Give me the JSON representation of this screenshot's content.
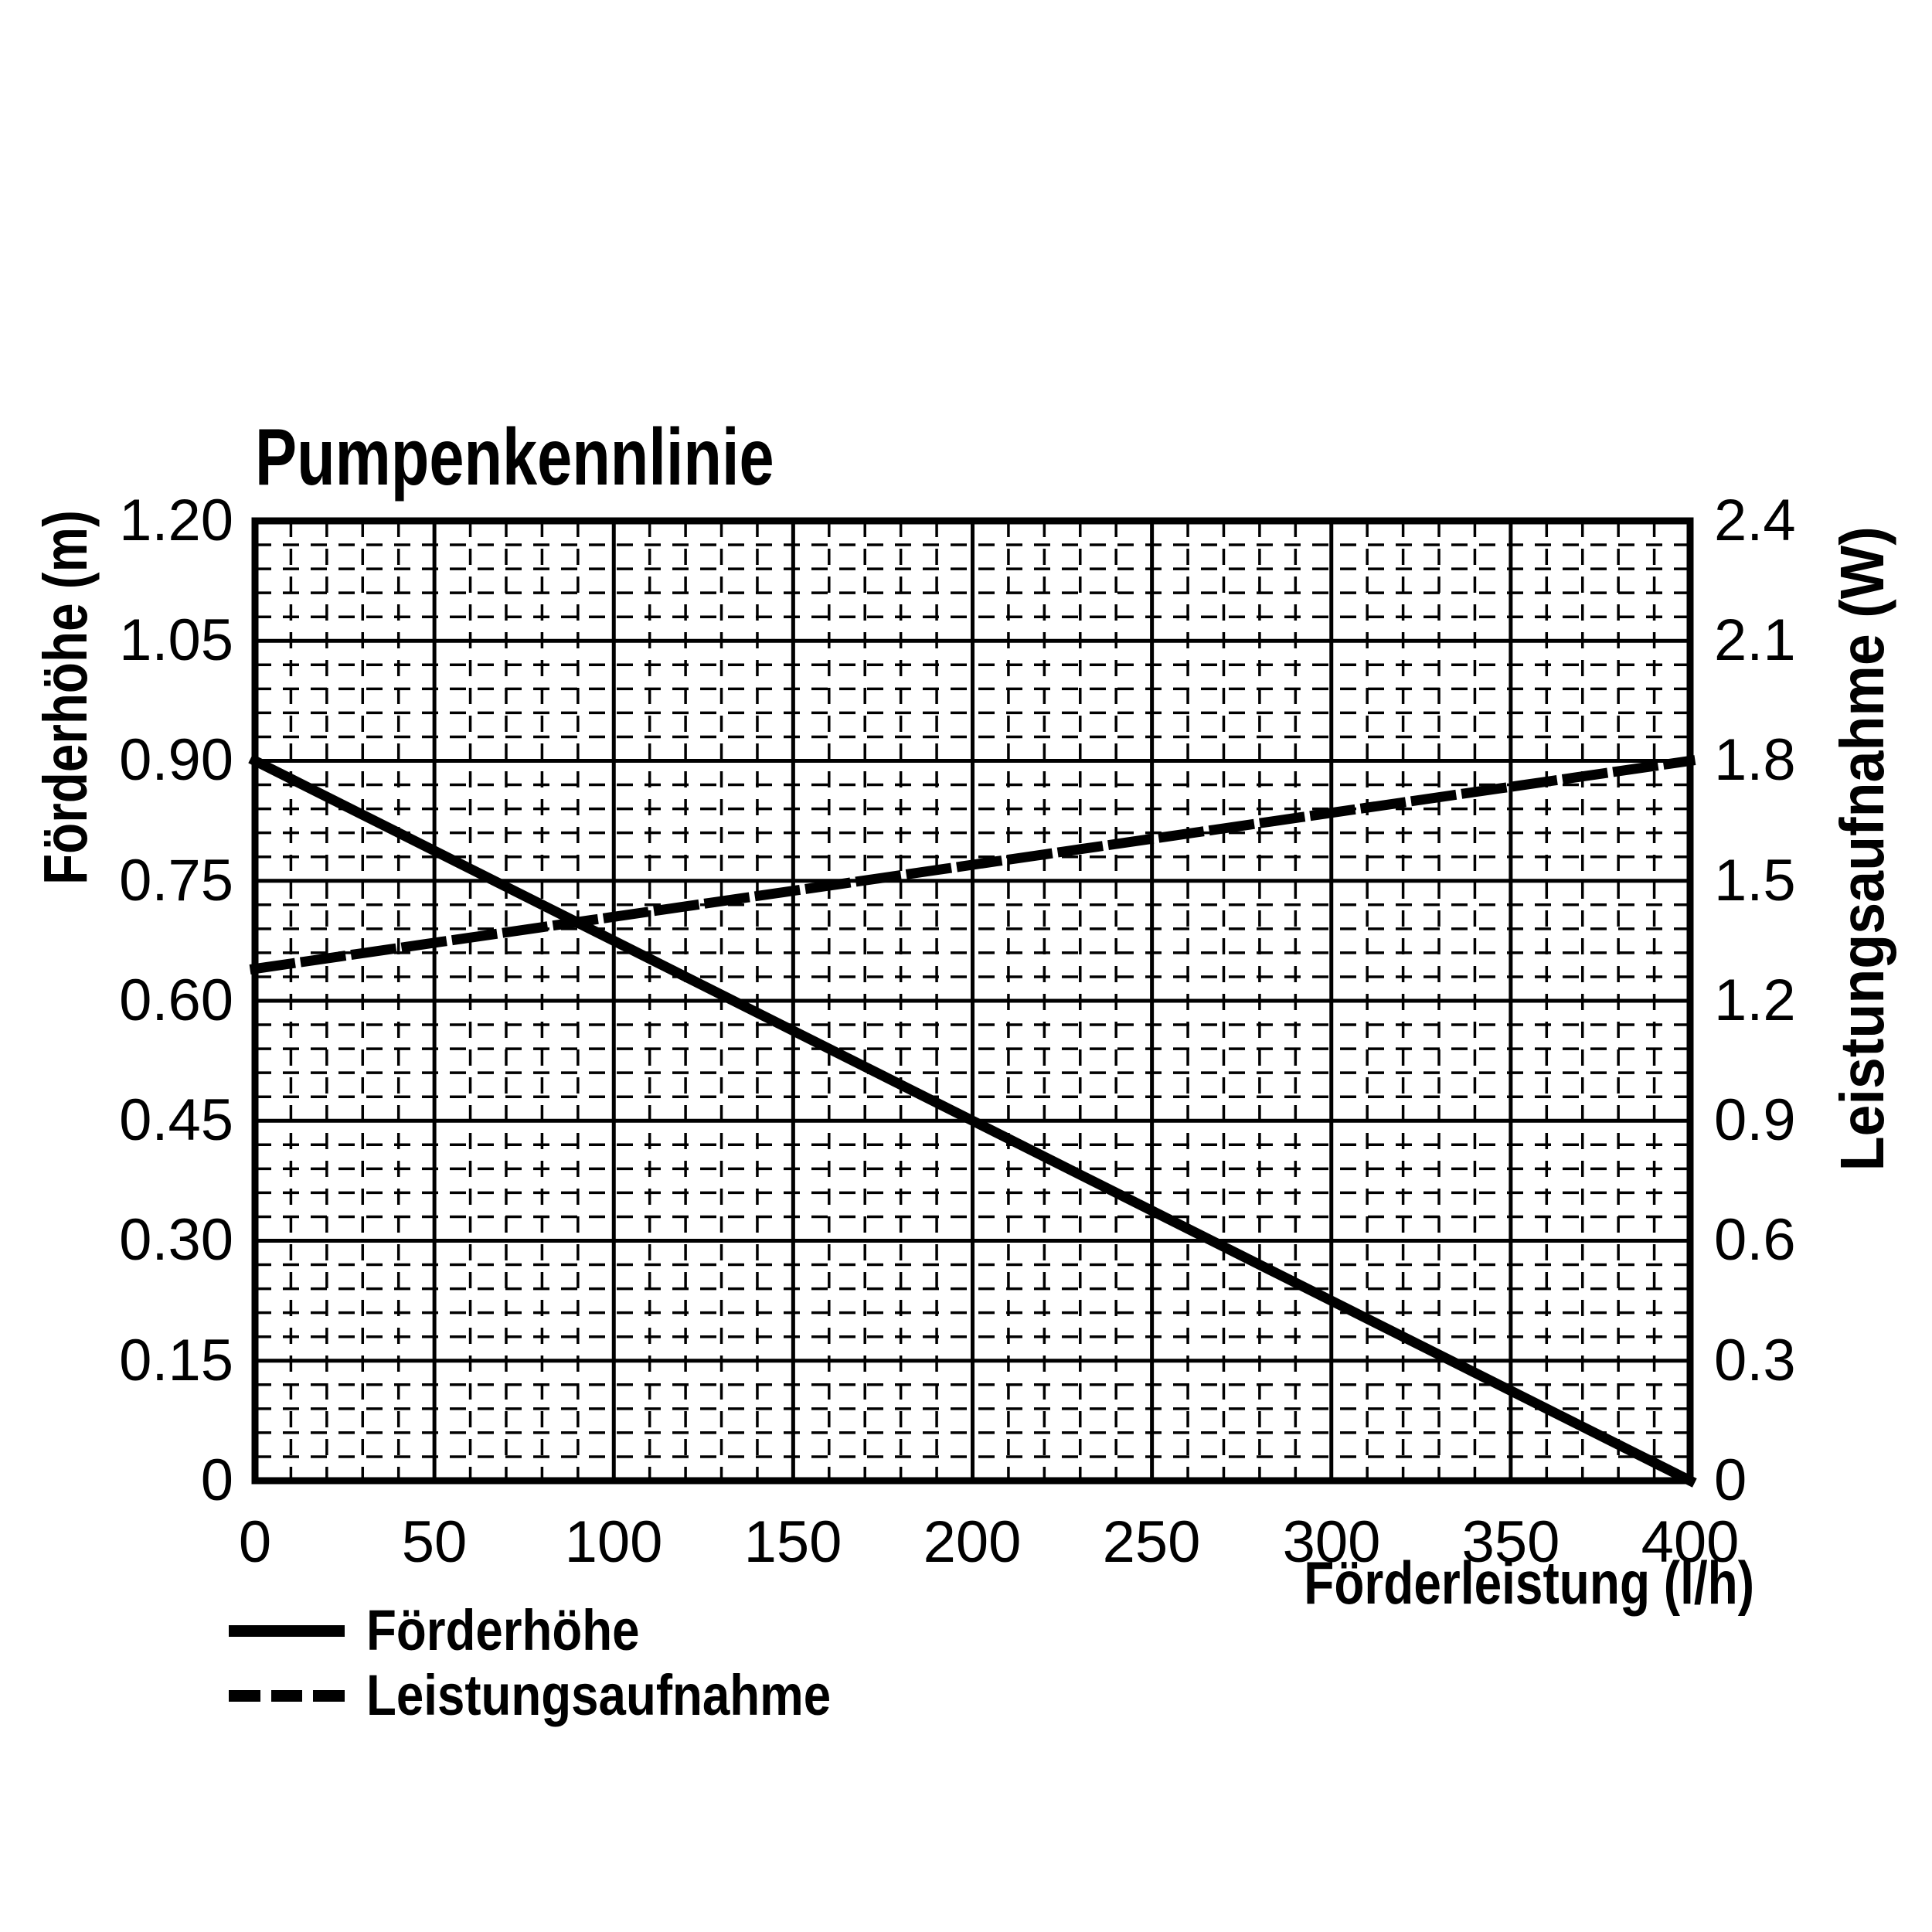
{
  "title": "Pumpenkennlinie",
  "axes": {
    "x": {
      "label": "Förderleistung (l/h)",
      "min": 0,
      "max": 400,
      "major_step": 50,
      "minor_step": 10,
      "ticks": [
        "0",
        "50",
        "100",
        "150",
        "200",
        "250",
        "300",
        "350",
        "400"
      ]
    },
    "y_left": {
      "label": "Förderhöhe (m)",
      "min": 0,
      "max": 1.2,
      "major_step": 0.15,
      "minor_step": 0.03,
      "ticks": [
        "1.20",
        "1.05",
        "0.90",
        "0.75",
        "0.60",
        "0.45",
        "0.30",
        "0.15",
        "0"
      ]
    },
    "y_right": {
      "label": "Leistungsaufnahme (W)",
      "min": 0,
      "max": 2.4,
      "major_step": 0.3,
      "minor_step": 0.06,
      "ticks": [
        "2.4",
        "2.1",
        "1.8",
        "1.5",
        "1.2",
        "0.9",
        "0.6",
        "0.3",
        "0"
      ]
    }
  },
  "legend": [
    {
      "label": "Förderhöhe",
      "style": "solid"
    },
    {
      "label": "Leistungsaufnahme",
      "style": "dashed"
    }
  ],
  "chart_data": {
    "type": "line",
    "title": "Pumpenkennlinie",
    "xlabel": "Förderleistung (l/h)",
    "ylabel_left": "Förderhöhe (m)",
    "ylabel_right": "Leistungsaufnahme (W)",
    "xlim": [
      0,
      400
    ],
    "ylim_left": [
      0,
      1.2
    ],
    "ylim_right": [
      0,
      2.4
    ],
    "grid": "major-solid-minor-dashed",
    "legend_position": "bottom-left",
    "series": [
      {
        "name": "Förderhöhe",
        "axis": "left",
        "style": "solid",
        "x": [
          0,
          400
        ],
        "y": [
          0.9,
          0.0
        ]
      },
      {
        "name": "Leistungsaufnahme",
        "axis": "right",
        "style": "dashed",
        "x": [
          0,
          400
        ],
        "y": [
          1.28,
          1.8
        ]
      }
    ]
  },
  "colors": {
    "foreground": "#000000",
    "background": "#ffffff",
    "grid": "#000000"
  }
}
